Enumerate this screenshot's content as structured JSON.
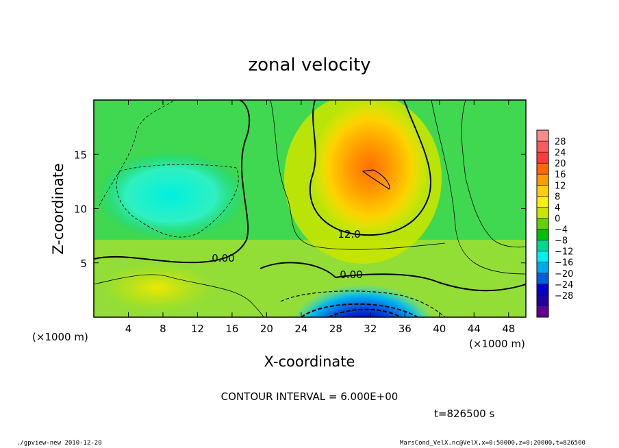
{
  "chart_data": {
    "type": "heatmap",
    "title": "zonal velocity",
    "xlabel": "X-coordinate",
    "ylabel": "Z-coordinate",
    "x_unit": "(×1000 m)",
    "x_ticks": [
      4,
      8,
      12,
      16,
      20,
      24,
      28,
      32,
      36,
      40,
      44,
      48
    ],
    "y_ticks": [
      5,
      10,
      15
    ],
    "xlim": [
      0,
      50
    ],
    "ylim": [
      0,
      20
    ],
    "contour_interval_text": "CONTOUR INTERVAL = 6.000E+00",
    "time_label": "t=826500 s",
    "contour_labels": [
      "12.0",
      "0.00",
      "0.00"
    ],
    "colorbar": {
      "ticks": [
        "28",
        "24",
        "20",
        "16",
        "12",
        "8",
        "4",
        "0",
        "−4",
        "−8",
        "−12",
        "−16",
        "−20",
        "−24",
        "−28"
      ],
      "colors": [
        "#ff8a8a",
        "#ff5a5a",
        "#ff3a3a",
        "#ff6a00",
        "#ff9a00",
        "#ffd000",
        "#fff000",
        "#c8e600",
        "#66d000",
        "#00c000",
        "#00d890",
        "#00f0f0",
        "#00a8f0",
        "#0060e0",
        "#0000d0",
        "#2000a0",
        "#600090"
      ],
      "ticks_order": "top-to-bottom"
    },
    "features": [
      {
        "desc": "positive maximum",
        "x": 33,
        "z": 12.5,
        "value": 20
      },
      {
        "desc": "negative minimum",
        "x": 33,
        "z": 0.5,
        "value": -28
      },
      {
        "desc": "weak negative region",
        "x": 10,
        "z": 11,
        "value": -8
      }
    ]
  },
  "footer": {
    "left": "./gpview-new  2010-12-20",
    "right": "MarsCond_VelX.nc@VelX,x=0:50000,z=0:20000,t=826500"
  }
}
